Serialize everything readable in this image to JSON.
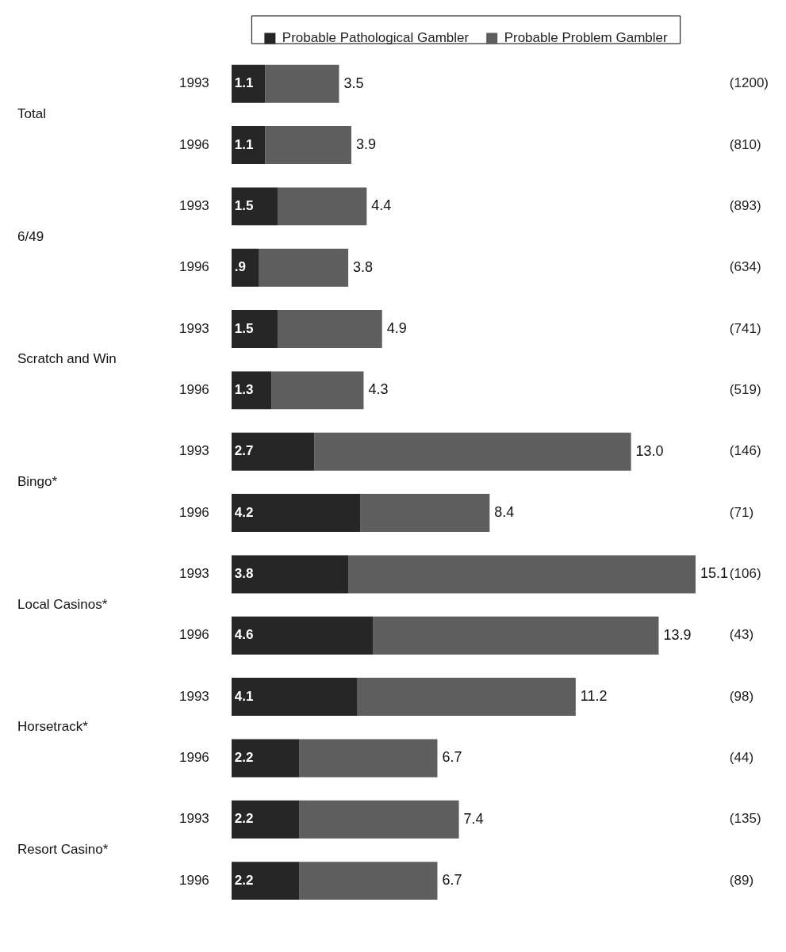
{
  "chart_data": {
    "type": "bar",
    "orientation": "horizontal",
    "stacked": true,
    "legend": "top",
    "categories": [
      "1993",
      "1996",
      "1993",
      "1996",
      "1993",
      "1996",
      "1993",
      "1996",
      "1993",
      "1996",
      "1993",
      "1996",
      "1993",
      "1996"
    ],
    "y2_categories": [
      "(1200)",
      "(810)",
      "(893)",
      "(634)",
      "(741)",
      "(519)",
      "(146)",
      "(71)",
      "(106)",
      "(43)",
      "(98)",
      "(44)",
      "(135)",
      "(89)"
    ],
    "annotations": [
      "Total",
      "6/49",
      "Scratch and Win",
      "Bingo*",
      "Local Casinos*",
      "Horsetrack*",
      "Resort Casino*"
    ],
    "series": [
      {
        "name": "Probable Pathological Gambler",
        "color": "#262626",
        "values": [
          1.1,
          1.1,
          1.5,
          0.9,
          1.5,
          1.3,
          2.7,
          4.2,
          3.8,
          4.6,
          4.1,
          2.2,
          2.2,
          2.2
        ],
        "value_labels": [
          "1.1",
          "1.1",
          "1.5",
          ".9",
          "1.5",
          "1.3",
          "2.7",
          "4.2",
          "3.8",
          "4.6",
          "4.1",
          "2.2",
          "2.2",
          "2.2"
        ]
      },
      {
        "name": "Probable Problem Gambler",
        "color": "#5e5e5e",
        "values": [
          2.4,
          2.8,
          2.9,
          2.9,
          3.4,
          3.0,
          10.3,
          4.2,
          11.3,
          9.3,
          7.1,
          4.5,
          5.2,
          4.5
        ]
      }
    ],
    "totals": [
      "3.5",
      "3.9",
      "4.4",
      "3.8",
      "4.9",
      "4.3",
      "13.0",
      "8.4",
      "15.1",
      "13.9",
      "11.2",
      "6.7",
      "7.4",
      "6.7"
    ]
  }
}
